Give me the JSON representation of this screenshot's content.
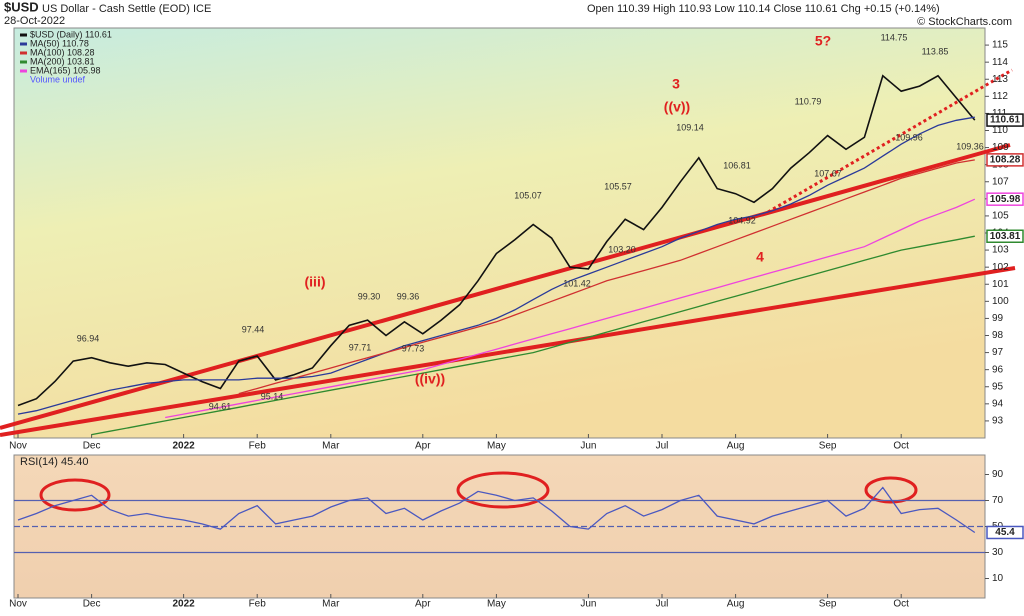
{
  "header": {
    "symbol": "$USD",
    "name": "US Dollar - Cash Settle (EOD) ICE",
    "date": "28-Oct-2022",
    "quote": "Open 110.39 High 110.93 Low 110.14 Close 110.61 Chg +0.15 (+0.14%)",
    "credit": "© StockCharts.com"
  },
  "chart_data": [
    {
      "type": "line",
      "categories": [
        "Nov",
        null,
        null,
        null,
        "Dec",
        null,
        null,
        null,
        null,
        "2022",
        null,
        null,
        null,
        "Feb",
        null,
        null,
        null,
        "Mar",
        null,
        null,
        null,
        null,
        "Apr",
        null,
        null,
        null,
        "May",
        null,
        null,
        null,
        null,
        "Jun",
        null,
        null,
        null,
        "Jul",
        null,
        null,
        null,
        "Aug",
        null,
        null,
        null,
        null,
        "Sep",
        null,
        null,
        null,
        "Oct",
        null,
        null,
        null,
        null
      ],
      "series": [
        {
          "name": "$USD (Daily) 110.61",
          "color": "#111111",
          "values": [
            93.9,
            94.3,
            95.3,
            96.5,
            96.7,
            96.4,
            96.2,
            96.4,
            96.3,
            95.8,
            95.3,
            94.9,
            96.5,
            96.8,
            95.4,
            95.7,
            96.1,
            97.4,
            98.6,
            98.9,
            98.0,
            98.8,
            98.1,
            98.9,
            99.8,
            101.2,
            102.8,
            103.6,
            104.5,
            103.7,
            102.0,
            101.9,
            103.5,
            104.8,
            104.2,
            105.5,
            107.0,
            108.4,
            106.6,
            106.3,
            105.8,
            106.6,
            107.8,
            108.7,
            109.7,
            108.9,
            109.6,
            113.2,
            112.3,
            112.6,
            113.2,
            111.9,
            110.61
          ]
        },
        {
          "name": "MA(50) 110.78",
          "color": "#2a3a9a",
          "values": [
            93.4,
            93.6,
            93.9,
            94.2,
            94.5,
            94.8,
            95.0,
            95.2,
            95.3,
            95.4,
            95.4,
            95.4,
            95.4,
            95.5,
            95.5,
            95.5,
            95.6,
            95.8,
            96.2,
            96.6,
            97.0,
            97.4,
            97.7,
            98.0,
            98.3,
            98.6,
            99.0,
            99.5,
            100.1,
            100.7,
            101.2,
            101.6,
            102.0,
            102.4,
            102.8,
            103.2,
            103.7,
            104.1,
            104.5,
            104.8,
            105.0,
            105.3,
            105.7,
            106.2,
            106.8,
            107.3,
            107.8,
            108.5,
            109.2,
            109.8,
            110.3,
            110.6,
            110.78
          ]
        },
        {
          "name": "MA(100) 108.28",
          "color": "#d03030",
          "values": [
            null,
            null,
            null,
            null,
            null,
            null,
            null,
            null,
            null,
            null,
            null,
            null,
            94.6,
            94.9,
            95.2,
            95.5,
            95.8,
            96.1,
            96.4,
            96.7,
            97.0,
            97.3,
            97.6,
            97.9,
            98.2,
            98.5,
            98.8,
            99.2,
            99.6,
            100.0,
            100.4,
            100.8,
            101.2,
            101.5,
            101.8,
            102.1,
            102.4,
            102.8,
            103.2,
            103.6,
            104.0,
            104.4,
            104.8,
            105.2,
            105.6,
            106.0,
            106.4,
            106.8,
            107.2,
            107.5,
            107.8,
            108.1,
            108.28
          ]
        },
        {
          "name": "MA(200) 103.81",
          "color": "#2f8a2f",
          "values": [
            null,
            null,
            null,
            null,
            92.2,
            92.4,
            92.6,
            92.8,
            93.0,
            93.2,
            93.4,
            93.6,
            93.8,
            94.0,
            94.2,
            94.4,
            94.6,
            94.8,
            95.0,
            95.2,
            95.4,
            95.6,
            95.8,
            96.0,
            96.2,
            96.4,
            96.6,
            96.8,
            97.0,
            97.3,
            97.6,
            97.9,
            98.2,
            98.5,
            98.8,
            99.1,
            99.4,
            99.7,
            100.0,
            100.3,
            100.6,
            100.9,
            101.2,
            101.5,
            101.8,
            102.1,
            102.4,
            102.7,
            103.0,
            103.2,
            103.4,
            103.6,
            103.81
          ]
        },
        {
          "name": "EMA(165) 105.98",
          "color": "#ee44dd",
          "values": [
            null,
            null,
            null,
            null,
            null,
            null,
            null,
            null,
            93.2,
            93.4,
            93.6,
            93.8,
            94.0,
            94.2,
            94.4,
            94.6,
            94.8,
            95.0,
            95.2,
            95.4,
            95.6,
            95.8,
            96.0,
            96.3,
            96.6,
            96.9,
            97.2,
            97.5,
            97.8,
            98.1,
            98.4,
            98.7,
            99.0,
            99.3,
            99.6,
            99.9,
            100.2,
            100.5,
            100.8,
            101.1,
            101.4,
            101.7,
            102.0,
            102.3,
            102.6,
            102.9,
            103.2,
            103.7,
            104.2,
            104.7,
            105.1,
            105.5,
            105.98
          ]
        }
      ],
      "volume_label": "Volume undef",
      "ylim": [
        92,
        116
      ],
      "yticks": [
        93,
        94,
        95,
        96,
        97,
        98,
        99,
        100,
        101,
        102,
        103,
        104,
        105,
        106,
        107,
        108,
        109,
        110,
        111,
        112,
        113,
        114,
        115
      ],
      "annotations": [
        "96.94",
        "97.44",
        "94.61",
        "95.14",
        "99.30",
        "99.36",
        "97.71",
        "97.73",
        "105.07",
        "105.57",
        "103.20",
        "101.42",
        "109.14",
        "106.81",
        "104.92",
        "110.79",
        "107.67",
        "114.75",
        "113.85",
        "109.96",
        "109.36"
      ],
      "wave_labels": [
        "(iii)",
        "((iv))",
        "3",
        "((v))",
        "4",
        "5?"
      ]
    },
    {
      "type": "line",
      "title": "RSI(14) 45.40",
      "categories": [
        "Nov",
        null,
        null,
        null,
        "Dec",
        null,
        null,
        null,
        null,
        "2022",
        null,
        null,
        null,
        "Feb",
        null,
        null,
        null,
        "Mar",
        null,
        null,
        null,
        null,
        "Apr",
        null,
        null,
        null,
        "May",
        null,
        null,
        null,
        null,
        "Jun",
        null,
        null,
        null,
        "Jul",
        null,
        null,
        null,
        "Aug",
        null,
        null,
        null,
        null,
        "Sep",
        null,
        null,
        null,
        "Oct",
        null,
        null,
        null,
        null
      ],
      "series": [
        {
          "name": "RSI(14)",
          "color": "#4a58c0",
          "values": [
            55,
            60,
            66,
            70,
            74,
            63,
            58,
            60,
            57,
            55,
            52,
            48,
            60,
            66,
            52,
            55,
            58,
            65,
            70,
            72,
            60,
            64,
            55,
            62,
            68,
            77,
            74,
            70,
            72,
            62,
            50,
            48,
            60,
            66,
            58,
            63,
            70,
            74,
            58,
            55,
            52,
            58,
            62,
            66,
            70,
            58,
            64,
            80,
            60,
            63,
            64,
            55,
            45.4
          ]
        }
      ],
      "ylim": [
        -5,
        105
      ],
      "yticks": [
        10,
        30,
        50,
        70,
        90
      ],
      "hlines": [
        {
          "value": 30,
          "style": "solid"
        },
        {
          "value": 50,
          "style": "dashed"
        },
        {
          "value": 70,
          "style": "solid"
        }
      ]
    }
  ]
}
